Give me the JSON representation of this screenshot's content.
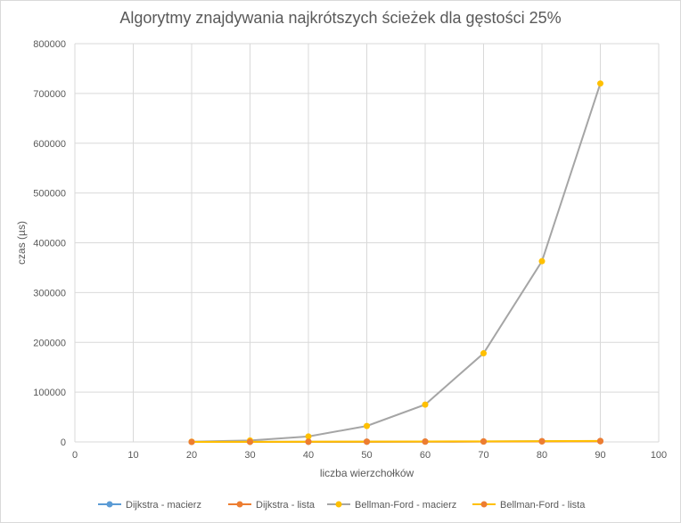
{
  "chart_data": {
    "type": "scatter",
    "title": "Algorytmy znajdywania najkrótszych ścieżek dla gęstości 25%",
    "xlabel": "liczba wierzchołków",
    "ylabel": "czas (µs)",
    "xlim": [
      0,
      100
    ],
    "ylim": [
      0,
      800000
    ],
    "x_ticks": [
      0,
      10,
      20,
      30,
      40,
      50,
      60,
      70,
      80,
      90,
      100
    ],
    "y_ticks": [
      0,
      100000,
      200000,
      300000,
      400000,
      500000,
      600000,
      700000,
      800000
    ],
    "grid": true,
    "legend_position": "bottom",
    "series": [
      {
        "name": "Dijkstra - macierz",
        "color": "#5b9bd5",
        "line_color": "#5b9bd5",
        "marker_color": "#5b9bd5",
        "x": [
          20,
          30,
          40,
          50,
          60,
          70,
          80,
          90
        ],
        "y": [
          50,
          120,
          250,
          400,
          600,
          900,
          1300,
          1800
        ]
      },
      {
        "name": "Dijkstra - lista",
        "color": "#ed7d31",
        "line_color": "#ed7d31",
        "marker_color": "#ed7d31",
        "x": [
          20,
          30,
          40,
          50,
          60,
          70,
          80,
          90
        ],
        "y": [
          40,
          90,
          180,
          300,
          450,
          650,
          900,
          1200
        ]
      },
      {
        "name": "Bellman-Ford - macierz",
        "color": "#a5a5a5",
        "line_color": "#a5a5a5",
        "marker_color": "#ffc000",
        "x": [
          20,
          30,
          40,
          50,
          60,
          70,
          80,
          90
        ],
        "y": [
          500,
          3000,
          11000,
          32000,
          75000,
          178000,
          363000,
          720000
        ]
      },
      {
        "name": "Bellman-Ford - lista",
        "color": "#ffc000",
        "line_color": "#ffc000",
        "marker_color": "#ed7d31",
        "x": [
          20,
          30,
          40,
          50,
          60,
          70,
          80,
          90
        ],
        "y": [
          100,
          300,
          500,
          700,
          900,
          1200,
          1600,
          2100
        ]
      }
    ]
  }
}
